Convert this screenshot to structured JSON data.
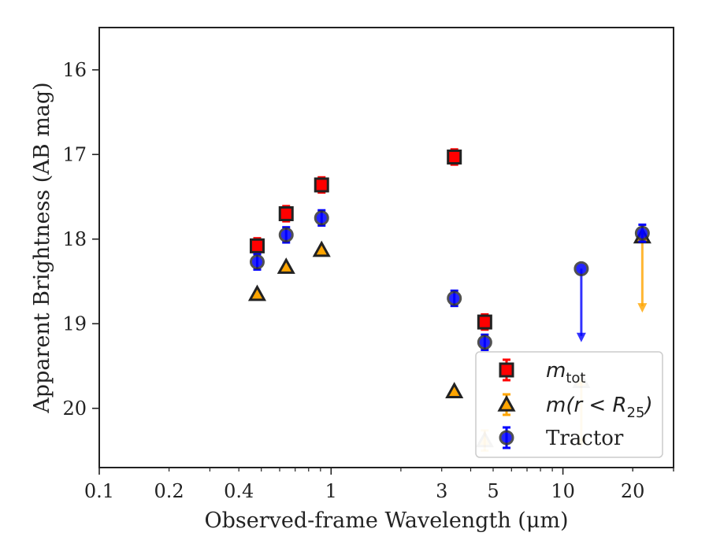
{
  "chart_data": {
    "type": "scatter",
    "title": "",
    "xlabel": "Observed-frame Wavelength (μm)",
    "ylabel": "Apparent Brightness (AB mag)",
    "xscale": "log",
    "xlim": [
      0.1,
      30
    ],
    "ylim": [
      20.7,
      15.5
    ],
    "y_inverted": true,
    "grid": false,
    "legend_position": "lower-right",
    "x_ticks": [
      {
        "value": 0.1,
        "label": "0.1"
      },
      {
        "value": 0.2,
        "label": "0.2"
      },
      {
        "value": 0.4,
        "label": "0.4"
      },
      {
        "value": 1,
        "label": "1"
      },
      {
        "value": 3,
        "label": "3"
      },
      {
        "value": 5,
        "label": "5"
      },
      {
        "value": 10,
        "label": "10"
      },
      {
        "value": 20,
        "label": "20"
      }
    ],
    "y_ticks": [
      {
        "value": 16,
        "label": "16"
      },
      {
        "value": 17,
        "label": "17"
      },
      {
        "value": 18,
        "label": "18"
      },
      {
        "value": 19,
        "label": "19"
      },
      {
        "value": 20,
        "label": "20"
      }
    ],
    "series": [
      {
        "name": "m_tot",
        "marker": "square",
        "color": "#ff0000",
        "points": [
          {
            "x": 0.48,
            "y": 18.08,
            "err": 0.09
          },
          {
            "x": 0.64,
            "y": 17.7,
            "err": 0.09
          },
          {
            "x": 0.91,
            "y": 17.36,
            "err": 0.09
          },
          {
            "x": 3.4,
            "y": 17.03,
            "err": 0.09
          },
          {
            "x": 4.6,
            "y": 18.98,
            "err": 0.09
          }
        ]
      },
      {
        "name": "m(r < R25)",
        "marker": "triangle",
        "color": "#ffa500",
        "points": [
          {
            "x": 0.48,
            "y": 18.65
          },
          {
            "x": 0.64,
            "y": 18.33
          },
          {
            "x": 0.91,
            "y": 18.13
          },
          {
            "x": 3.4,
            "y": 19.8
          },
          {
            "x": 4.6,
            "y": 20.38,
            "faded": true,
            "err": 0.12
          },
          {
            "x": 12.0,
            "y": 19.68,
            "faded": true,
            "upper_limit_to": 20.45
          },
          {
            "x": 22.0,
            "y": 17.97,
            "upper_limit_to": 18.85
          }
        ]
      },
      {
        "name": "Tractor",
        "marker": "circle",
        "color": "#0000ff",
        "points": [
          {
            "x": 0.48,
            "y": 18.27,
            "err": 0.09
          },
          {
            "x": 0.64,
            "y": 17.95,
            "err": 0.09
          },
          {
            "x": 0.91,
            "y": 17.75,
            "err": 0.09
          },
          {
            "x": 3.4,
            "y": 18.7,
            "err": 0.09
          },
          {
            "x": 4.6,
            "y": 19.22,
            "err": 0.09
          },
          {
            "x": 12.0,
            "y": 18.35,
            "upper_limit_to": 19.2
          },
          {
            "x": 22.0,
            "y": 17.93,
            "err": 0.1
          }
        ]
      }
    ],
    "legend": [
      {
        "series": "m_tot",
        "base": "m",
        "subscript": "tot",
        "subscript_italic": false,
        "suffix": ""
      },
      {
        "series": "m(r < R25)",
        "base": "m(r < R",
        "subscript": "25",
        "subscript_italic": false,
        "suffix": ")"
      },
      {
        "series": "Tractor",
        "base": "Tractor",
        "subscript": "",
        "subscript_italic": false,
        "suffix": "",
        "upright": true
      }
    ]
  }
}
